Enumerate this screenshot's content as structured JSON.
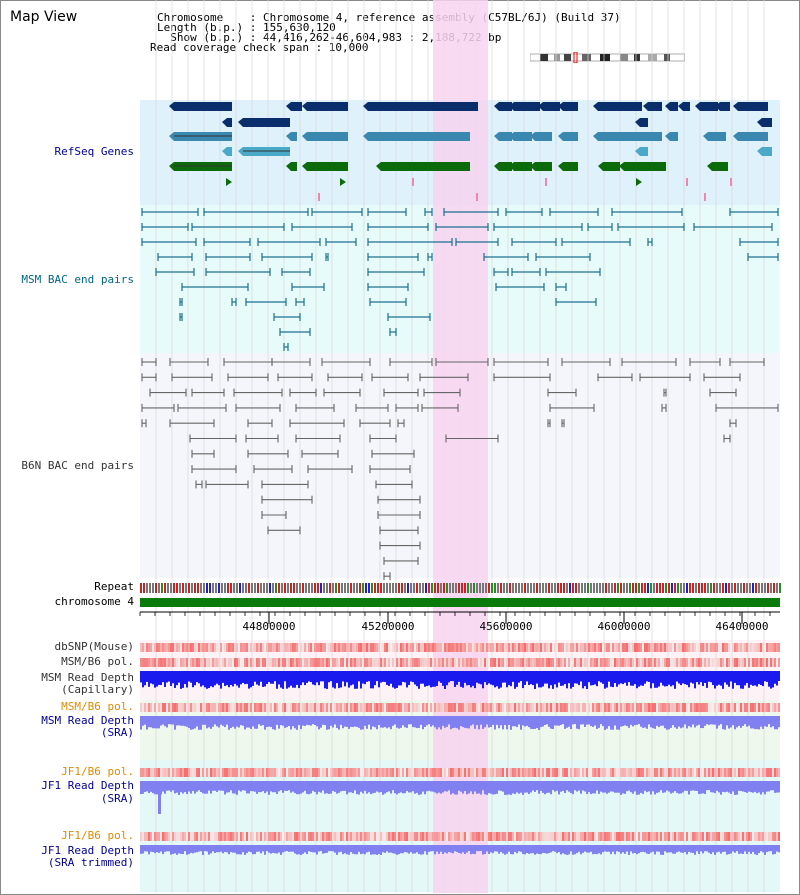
{
  "title": "Map View",
  "info": {
    "chromosome_line": "Chromosome    : Chromosome 4, reference assembly (C57BL/6J) (Build 37)",
    "length_line": "Length (b.p.) : 155,630,120",
    "show_line": "  Show (b.p.) : 44,416,262-46,604,983 : 2,188,722 bp",
    "coverage_line": "Read coverage check span : 10,000"
  },
  "tracks": {
    "refseq": "RefSeq Genes",
    "msm_bac": "MSM BAC end pairs",
    "b6n_bac": "B6N BAC end pairs",
    "repeat": "Repeat",
    "chromosome": "chromosome 4",
    "dbsnp": "dbSNP(Mouse)",
    "msm_b6_pol_1": "MSM/B6 pol.",
    "msm_depth_cap_1": "MSM Read Depth",
    "msm_depth_cap_2": "(Capillary)",
    "msm_b6_pol_2": "MSM/B6 pol.",
    "msm_depth_sra_1": "MSM Read Depth",
    "msm_depth_sra_2": "(SRA)",
    "jf1_b6_pol_1": "JF1/B6 pol.",
    "jf1_depth_sra_1": "JF1 Read Depth",
    "jf1_depth_sra_2": "(SRA)",
    "jf1_b6_pol_2": "JF1/B6 pol.",
    "jf1_depth_trim_1": "JF1 Read Depth",
    "jf1_depth_trim_2": "(SRA trimmed)"
  },
  "axis_ticks": [
    "44800000",
    "45200000",
    "45600000",
    "46000000",
    "46400000"
  ],
  "colors": {
    "refseq_bg": "#dff1fb",
    "msm_bac_bg": "#e8fbfb",
    "b6n_bac_bg": "#f4f6fb",
    "highlight": "#f7d3f0",
    "refseq_dark": "#0a2d6b",
    "refseq_mid": "#3a87b0",
    "refseq_light": "#4aa8c8",
    "refseq_green": "#0b6b0b",
    "msm_bac_line": "#1e6f8f",
    "b6n_bac_line": "#666666",
    "chrom_green": "#0a7a0a",
    "depth_blue": "#1a1aee",
    "depth_sra_blue": "#8080f0",
    "label_navy": "#000099",
    "label_orange": "#e08a00",
    "label_gray": "#333333",
    "label_msm": "#006688"
  }
}
